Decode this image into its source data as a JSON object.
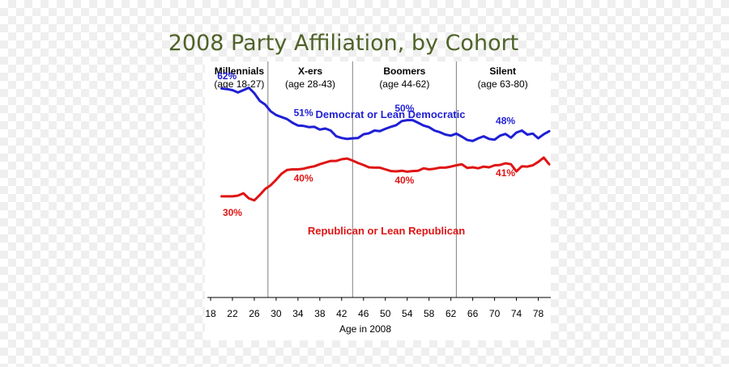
{
  "chart_data": {
    "type": "line",
    "title": "2008 Party Affiliation, by Cohort",
    "xlabel": "Age in 2008",
    "ylabel": "",
    "xlim": [
      18,
      80
    ],
    "ylim": [
      0,
      70
    ],
    "x_ticks": [
      18,
      22,
      26,
      30,
      34,
      38,
      42,
      46,
      50,
      54,
      58,
      62,
      66,
      70,
      74,
      78
    ],
    "grid": false,
    "cohorts": [
      {
        "name": "Millennials",
        "ages": "(age 18-27)",
        "start": 18,
        "end": 28.5
      },
      {
        "name": "X-ers",
        "ages": "(age 28-43)",
        "start": 28.5,
        "end": 44
      },
      {
        "name": "Boomers",
        "ages": "(age 44-62)",
        "start": 44,
        "end": 63
      },
      {
        "name": "Silent",
        "ages": "(age 63-80)",
        "start": 63,
        "end": 80
      }
    ],
    "series": [
      {
        "name": "Democrat or Lean Democratic",
        "color": "#1f1fd6",
        "x": [
          20,
          21,
          22,
          23,
          24,
          25,
          26,
          27,
          28,
          29,
          30,
          31,
          32,
          33,
          34,
          35,
          36,
          37,
          38,
          39,
          40,
          41,
          42,
          43,
          44,
          45,
          46,
          47,
          48,
          49,
          50,
          51,
          52,
          53,
          54,
          55,
          56,
          57,
          58,
          59,
          60,
          61,
          62,
          63,
          64,
          65,
          66,
          67,
          68,
          69,
          70,
          71,
          72,
          73,
          74,
          75,
          76,
          77,
          78,
          79,
          80
        ],
        "y": [
          62,
          61.8,
          61.5,
          60.8,
          61.5,
          62.2,
          60.6,
          58.3,
          57.2,
          55.2,
          54.1,
          53.5,
          52.9,
          51.8,
          51,
          50.9,
          50.5,
          50.6,
          49.8,
          50.1,
          49.5,
          47.8,
          47.3,
          47,
          47.2,
          47.3,
          48.4,
          48.7,
          49.5,
          49.3,
          50,
          50.6,
          51.1,
          52.3,
          52.6,
          52.6,
          51.8,
          51,
          50.5,
          49.5,
          49,
          48.3,
          48,
          48.6,
          47.7,
          46.7,
          46.4,
          47.2,
          47.8,
          47,
          46.8,
          48,
          48.5,
          47.4,
          48.9,
          49.5,
          48.3,
          48.6,
          47.2,
          48.4,
          49.3
        ]
      },
      {
        "name": "Republican or Lean Republican",
        "color": "#e01414",
        "x": [
          20,
          21,
          22,
          23,
          24,
          25,
          26,
          27,
          28,
          29,
          30,
          31,
          32,
          33,
          34,
          35,
          36,
          37,
          38,
          39,
          40,
          41,
          42,
          43,
          44,
          45,
          46,
          47,
          48,
          49,
          50,
          51,
          52,
          53,
          54,
          55,
          56,
          57,
          58,
          59,
          60,
          61,
          62,
          63,
          64,
          65,
          66,
          67,
          68,
          69,
          70,
          71,
          72,
          73,
          74,
          75,
          76,
          77,
          78,
          79,
          80
        ],
        "y": [
          30,
          30,
          30,
          30.2,
          30.9,
          29.4,
          28.8,
          30.4,
          32.2,
          33.3,
          34.9,
          36.7,
          37.8,
          38,
          38,
          38.2,
          38.6,
          38.9,
          39.5,
          40,
          40.5,
          40.5,
          41,
          41.2,
          40.6,
          39.9,
          39.3,
          38.6,
          38.5,
          38.5,
          38,
          37.5,
          37.4,
          37.6,
          37.3,
          37.5,
          37.6,
          38.3,
          38,
          38.2,
          38.5,
          38.5,
          38.8,
          39.2,
          39.5,
          38.4,
          38.6,
          38.3,
          38.8,
          38.6,
          39.2,
          39.3,
          39.8,
          39.5,
          37.4,
          38.9,
          38.8,
          39.2,
          40.2,
          41.5,
          39.5
        ]
      }
    ],
    "annotations": [
      {
        "text": "62%",
        "series": "dem",
        "x": 21
      },
      {
        "text": "51%",
        "series": "dem",
        "x": 35
      },
      {
        "text": "50%",
        "series": "dem",
        "x": 53.5
      },
      {
        "text": "48%",
        "series": "dem",
        "x": 72
      },
      {
        "text": "30%",
        "series": "rep",
        "x": 22
      },
      {
        "text": "40%",
        "series": "rep",
        "x": 35
      },
      {
        "text": "40%",
        "series": "rep",
        "x": 53.5
      },
      {
        "text": "41%",
        "series": "rep",
        "x": 72
      }
    ]
  }
}
